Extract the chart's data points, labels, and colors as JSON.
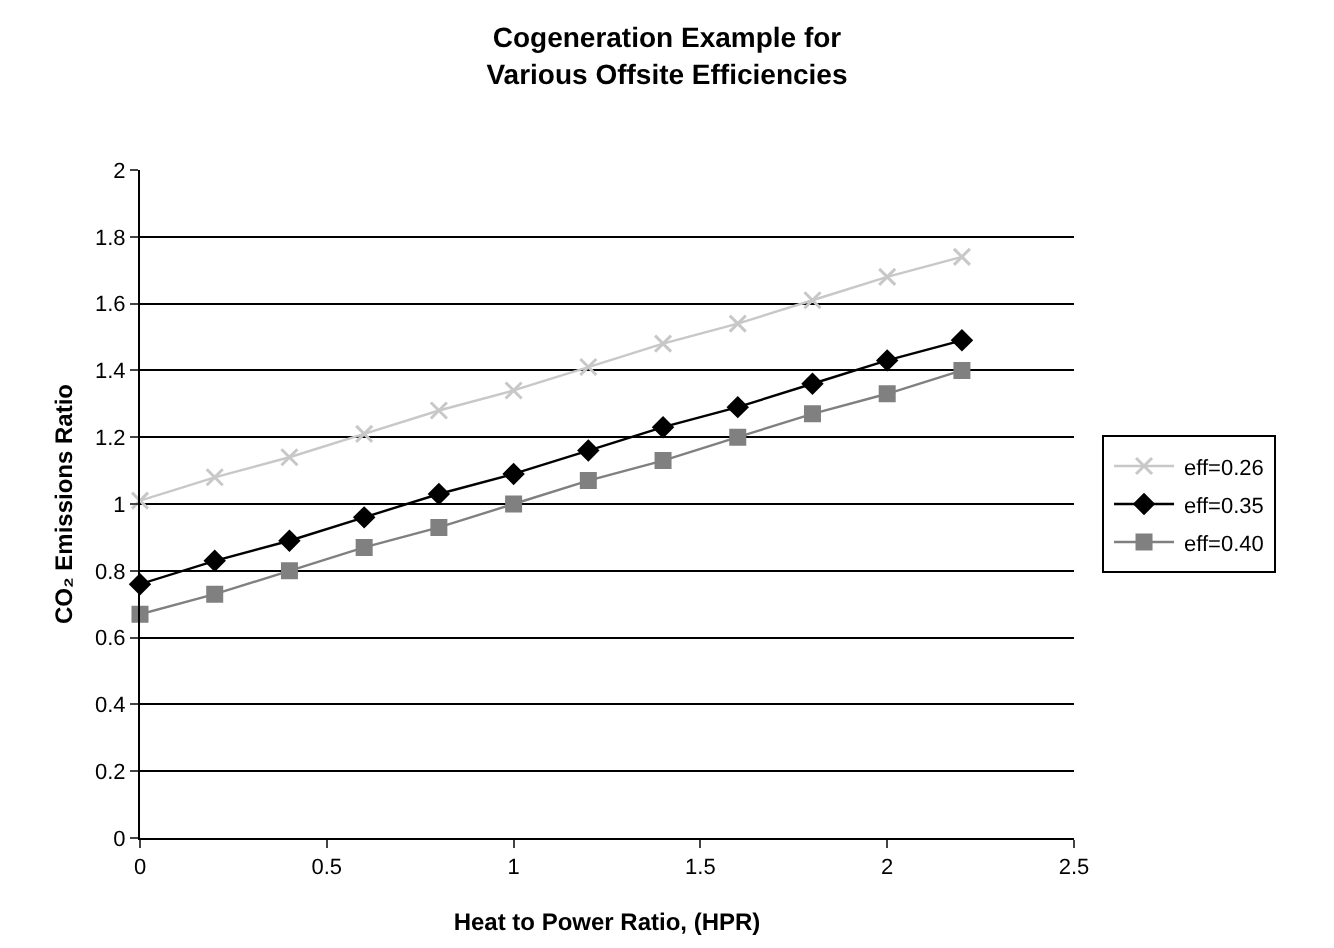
{
  "chart_data": {
    "type": "line",
    "title": "Cogeneration Example for\nVarious Offsite Efficiencies",
    "xlabel": "Heat to Power Ratio, (HPR)",
    "ylabel": "CO₂ Emissions Ratio",
    "x": [
      0,
      0.2,
      0.4,
      0.6,
      0.8,
      1.0,
      1.2,
      1.4,
      1.6,
      1.8,
      2.0,
      2.2
    ],
    "series": [
      {
        "name": "eff=0.26",
        "color": "#c8c8c8",
        "marker": "cross",
        "values": [
          1.01,
          1.08,
          1.14,
          1.21,
          1.28,
          1.34,
          1.41,
          1.48,
          1.54,
          1.61,
          1.68,
          1.74
        ]
      },
      {
        "name": "eff=0.35",
        "color": "#000000",
        "marker": "diamond",
        "values": [
          0.76,
          0.83,
          0.89,
          0.96,
          1.03,
          1.09,
          1.16,
          1.23,
          1.29,
          1.36,
          1.43,
          1.49
        ]
      },
      {
        "name": "eff=0.40",
        "color": "#808080",
        "marker": "square",
        "values": [
          0.67,
          0.73,
          0.8,
          0.87,
          0.93,
          1.0,
          1.07,
          1.13,
          1.2,
          1.27,
          1.33,
          1.4
        ]
      }
    ],
    "xlim": [
      0,
      2.5
    ],
    "xticks": [
      0,
      0.5,
      1,
      1.5,
      2,
      2.5
    ],
    "ylim": [
      0,
      2
    ],
    "yticks": [
      0,
      0.2,
      0.4,
      0.6,
      0.8,
      1,
      1.2,
      1.4,
      1.6,
      1.8,
      2
    ],
    "grid": "y",
    "legend": "right",
    "line_style": "solid"
  }
}
